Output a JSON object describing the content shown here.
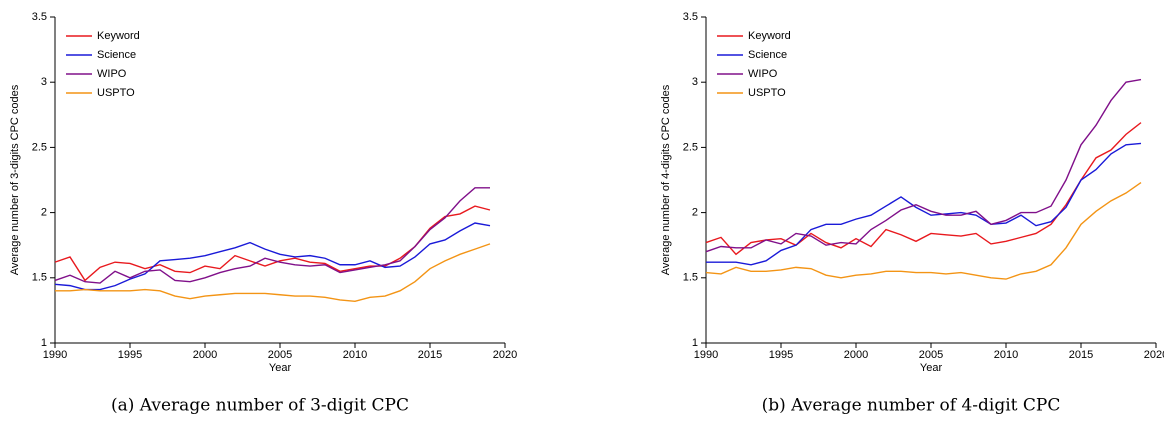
{
  "chart_data": [
    {
      "type": "line",
      "caption": "(a) Average number of 3-digit CPC",
      "ylabel": "Average number of 3-digits CPC codes",
      "xlabel": "Year",
      "x": [
        1990,
        1991,
        1992,
        1993,
        1994,
        1995,
        1996,
        1997,
        1998,
        1999,
        2000,
        2001,
        2002,
        2003,
        2004,
        2005,
        2006,
        2007,
        2008,
        2009,
        2010,
        2011,
        2012,
        2013,
        2014,
        2015,
        2016,
        2017,
        2018,
        2019
      ],
      "xlim": [
        1990,
        2020
      ],
      "xticks": [
        1990,
        1995,
        2000,
        2005,
        2010,
        2015,
        2020
      ],
      "ylim": [
        1,
        3.5
      ],
      "yticks": [
        1,
        1.5,
        2,
        2.5,
        3,
        3.5
      ],
      "legend": "upper-left",
      "series": [
        {
          "name": "Keyword",
          "color": "#e8191e",
          "values": [
            1.62,
            1.66,
            1.48,
            1.58,
            1.62,
            1.61,
            1.57,
            1.6,
            1.55,
            1.54,
            1.59,
            1.57,
            1.67,
            1.63,
            1.59,
            1.63,
            1.65,
            1.62,
            1.61,
            1.55,
            1.57,
            1.59,
            1.59,
            1.65,
            1.74,
            1.88,
            1.97,
            1.99,
            2.05,
            2.02
          ]
        },
        {
          "name": "Science",
          "color": "#1a1ad8",
          "values": [
            1.45,
            1.44,
            1.41,
            1.41,
            1.44,
            1.49,
            1.53,
            1.63,
            1.64,
            1.65,
            1.67,
            1.7,
            1.73,
            1.77,
            1.72,
            1.68,
            1.66,
            1.67,
            1.65,
            1.6,
            1.6,
            1.63,
            1.58,
            1.59,
            1.66,
            1.76,
            1.79,
            1.86,
            1.92,
            1.9
          ]
        },
        {
          "name": "WIPO",
          "color": "#80108a",
          "values": [
            1.48,
            1.52,
            1.47,
            1.46,
            1.55,
            1.5,
            1.55,
            1.56,
            1.48,
            1.47,
            1.5,
            1.54,
            1.57,
            1.59,
            1.65,
            1.62,
            1.6,
            1.59,
            1.6,
            1.54,
            1.56,
            1.58,
            1.6,
            1.63,
            1.74,
            1.87,
            1.96,
            2.09,
            2.19,
            2.19
          ]
        },
        {
          "name": "USPTO",
          "color": "#f39415",
          "values": [
            1.4,
            1.4,
            1.41,
            1.4,
            1.4,
            1.4,
            1.41,
            1.4,
            1.36,
            1.34,
            1.36,
            1.37,
            1.38,
            1.38,
            1.38,
            1.37,
            1.36,
            1.36,
            1.35,
            1.33,
            1.32,
            1.35,
            1.36,
            1.4,
            1.47,
            1.57,
            1.63,
            1.68,
            1.72,
            1.76
          ]
        }
      ]
    },
    {
      "type": "line",
      "caption": "(b) Average number of 4-digit CPC",
      "ylabel": "Average number of 4-digits CPC codes",
      "xlabel": "Year",
      "x": [
        1990,
        1991,
        1992,
        1993,
        1994,
        1995,
        1996,
        1997,
        1998,
        1999,
        2000,
        2001,
        2002,
        2003,
        2004,
        2005,
        2006,
        2007,
        2008,
        2009,
        2010,
        2011,
        2012,
        2013,
        2014,
        2015,
        2016,
        2017,
        2018,
        2019
      ],
      "xlim": [
        1990,
        2020
      ],
      "xticks": [
        1990,
        1995,
        2000,
        2005,
        2010,
        2015,
        2020
      ],
      "ylim": [
        1,
        3.5
      ],
      "yticks": [
        1,
        1.5,
        2,
        2.5,
        3,
        3.5
      ],
      "legend": "upper-left",
      "series": [
        {
          "name": "Keyword",
          "color": "#e8191e",
          "values": [
            1.77,
            1.81,
            1.68,
            1.77,
            1.79,
            1.8,
            1.75,
            1.84,
            1.77,
            1.73,
            1.8,
            1.74,
            1.87,
            1.83,
            1.78,
            1.84,
            1.83,
            1.82,
            1.84,
            1.76,
            1.78,
            1.81,
            1.84,
            1.91,
            2.06,
            2.25,
            2.42,
            2.48,
            2.6,
            2.69
          ]
        },
        {
          "name": "Science",
          "color": "#1a1ad8",
          "values": [
            1.62,
            1.62,
            1.62,
            1.6,
            1.63,
            1.71,
            1.75,
            1.87,
            1.91,
            1.91,
            1.95,
            1.98,
            2.05,
            2.12,
            2.04,
            1.98,
            1.99,
            2.0,
            1.98,
            1.91,
            1.92,
            1.98,
            1.9,
            1.93,
            2.04,
            2.25,
            2.33,
            2.45,
            2.52,
            2.53
          ]
        },
        {
          "name": "WIPO",
          "color": "#80108a",
          "values": [
            1.7,
            1.74,
            1.73,
            1.73,
            1.79,
            1.76,
            1.84,
            1.82,
            1.75,
            1.77,
            1.76,
            1.87,
            1.94,
            2.02,
            2.06,
            2.01,
            1.98,
            1.98,
            2.01,
            1.91,
            1.94,
            2.0,
            2.0,
            2.05,
            2.25,
            2.52,
            2.67,
            2.86,
            3.0,
            3.02
          ]
        },
        {
          "name": "USPTO",
          "color": "#f39415",
          "values": [
            1.54,
            1.53,
            1.58,
            1.55,
            1.55,
            1.56,
            1.58,
            1.57,
            1.52,
            1.5,
            1.52,
            1.53,
            1.55,
            1.55,
            1.54,
            1.54,
            1.53,
            1.54,
            1.52,
            1.5,
            1.49,
            1.53,
            1.55,
            1.6,
            1.73,
            1.91,
            2.01,
            2.09,
            2.15,
            2.23
          ]
        }
      ]
    }
  ]
}
